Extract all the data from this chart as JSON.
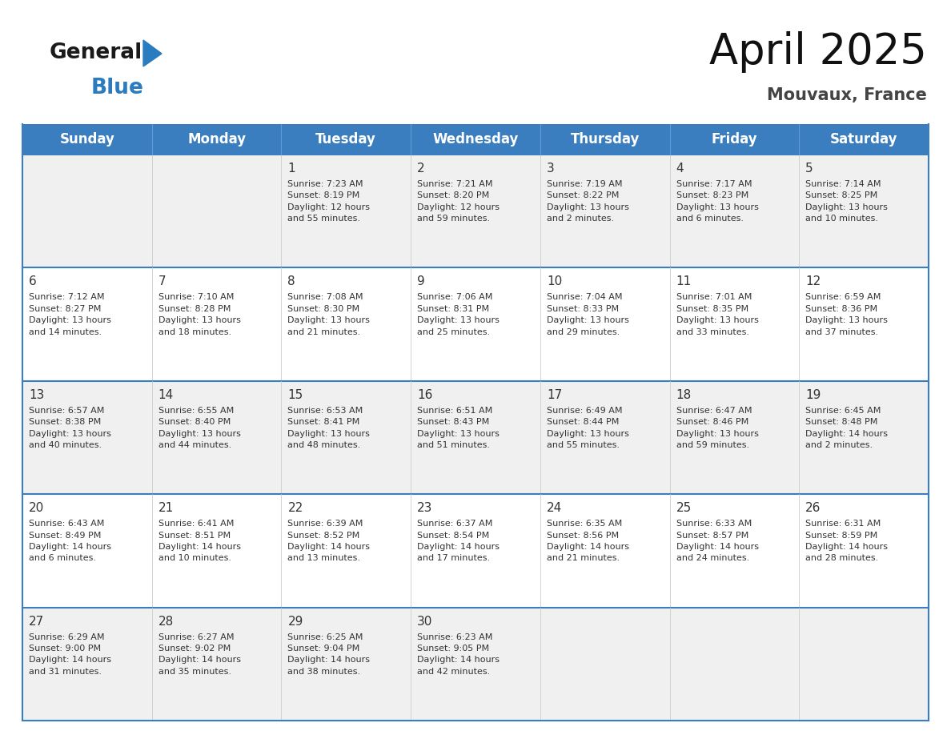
{
  "title": "April 2025",
  "subtitle": "Mouvaux, France",
  "header_bg": "#3a7ebf",
  "header_text": "#ffffff",
  "cell_bg_light": "#f0f0f0",
  "cell_bg_white": "#ffffff",
  "border_color": "#3a7ebf",
  "text_color": "#333333",
  "days_of_week": [
    "Sunday",
    "Monday",
    "Tuesday",
    "Wednesday",
    "Thursday",
    "Friday",
    "Saturday"
  ],
  "weeks": [
    [
      {
        "day": "",
        "info": ""
      },
      {
        "day": "",
        "info": ""
      },
      {
        "day": "1",
        "info": "Sunrise: 7:23 AM\nSunset: 8:19 PM\nDaylight: 12 hours\nand 55 minutes."
      },
      {
        "day": "2",
        "info": "Sunrise: 7:21 AM\nSunset: 8:20 PM\nDaylight: 12 hours\nand 59 minutes."
      },
      {
        "day": "3",
        "info": "Sunrise: 7:19 AM\nSunset: 8:22 PM\nDaylight: 13 hours\nand 2 minutes."
      },
      {
        "day": "4",
        "info": "Sunrise: 7:17 AM\nSunset: 8:23 PM\nDaylight: 13 hours\nand 6 minutes."
      },
      {
        "day": "5",
        "info": "Sunrise: 7:14 AM\nSunset: 8:25 PM\nDaylight: 13 hours\nand 10 minutes."
      }
    ],
    [
      {
        "day": "6",
        "info": "Sunrise: 7:12 AM\nSunset: 8:27 PM\nDaylight: 13 hours\nand 14 minutes."
      },
      {
        "day": "7",
        "info": "Sunrise: 7:10 AM\nSunset: 8:28 PM\nDaylight: 13 hours\nand 18 minutes."
      },
      {
        "day": "8",
        "info": "Sunrise: 7:08 AM\nSunset: 8:30 PM\nDaylight: 13 hours\nand 21 minutes."
      },
      {
        "day": "9",
        "info": "Sunrise: 7:06 AM\nSunset: 8:31 PM\nDaylight: 13 hours\nand 25 minutes."
      },
      {
        "day": "10",
        "info": "Sunrise: 7:04 AM\nSunset: 8:33 PM\nDaylight: 13 hours\nand 29 minutes."
      },
      {
        "day": "11",
        "info": "Sunrise: 7:01 AM\nSunset: 8:35 PM\nDaylight: 13 hours\nand 33 minutes."
      },
      {
        "day": "12",
        "info": "Sunrise: 6:59 AM\nSunset: 8:36 PM\nDaylight: 13 hours\nand 37 minutes."
      }
    ],
    [
      {
        "day": "13",
        "info": "Sunrise: 6:57 AM\nSunset: 8:38 PM\nDaylight: 13 hours\nand 40 minutes."
      },
      {
        "day": "14",
        "info": "Sunrise: 6:55 AM\nSunset: 8:40 PM\nDaylight: 13 hours\nand 44 minutes."
      },
      {
        "day": "15",
        "info": "Sunrise: 6:53 AM\nSunset: 8:41 PM\nDaylight: 13 hours\nand 48 minutes."
      },
      {
        "day": "16",
        "info": "Sunrise: 6:51 AM\nSunset: 8:43 PM\nDaylight: 13 hours\nand 51 minutes."
      },
      {
        "day": "17",
        "info": "Sunrise: 6:49 AM\nSunset: 8:44 PM\nDaylight: 13 hours\nand 55 minutes."
      },
      {
        "day": "18",
        "info": "Sunrise: 6:47 AM\nSunset: 8:46 PM\nDaylight: 13 hours\nand 59 minutes."
      },
      {
        "day": "19",
        "info": "Sunrise: 6:45 AM\nSunset: 8:48 PM\nDaylight: 14 hours\nand 2 minutes."
      }
    ],
    [
      {
        "day": "20",
        "info": "Sunrise: 6:43 AM\nSunset: 8:49 PM\nDaylight: 14 hours\nand 6 minutes."
      },
      {
        "day": "21",
        "info": "Sunrise: 6:41 AM\nSunset: 8:51 PM\nDaylight: 14 hours\nand 10 minutes."
      },
      {
        "day": "22",
        "info": "Sunrise: 6:39 AM\nSunset: 8:52 PM\nDaylight: 14 hours\nand 13 minutes."
      },
      {
        "day": "23",
        "info": "Sunrise: 6:37 AM\nSunset: 8:54 PM\nDaylight: 14 hours\nand 17 minutes."
      },
      {
        "day": "24",
        "info": "Sunrise: 6:35 AM\nSunset: 8:56 PM\nDaylight: 14 hours\nand 21 minutes."
      },
      {
        "day": "25",
        "info": "Sunrise: 6:33 AM\nSunset: 8:57 PM\nDaylight: 14 hours\nand 24 minutes."
      },
      {
        "day": "26",
        "info": "Sunrise: 6:31 AM\nSunset: 8:59 PM\nDaylight: 14 hours\nand 28 minutes."
      }
    ],
    [
      {
        "day": "27",
        "info": "Sunrise: 6:29 AM\nSunset: 9:00 PM\nDaylight: 14 hours\nand 31 minutes."
      },
      {
        "day": "28",
        "info": "Sunrise: 6:27 AM\nSunset: 9:02 PM\nDaylight: 14 hours\nand 35 minutes."
      },
      {
        "day": "29",
        "info": "Sunrise: 6:25 AM\nSunset: 9:04 PM\nDaylight: 14 hours\nand 38 minutes."
      },
      {
        "day": "30",
        "info": "Sunrise: 6:23 AM\nSunset: 9:05 PM\nDaylight: 14 hours\nand 42 minutes."
      },
      {
        "day": "",
        "info": ""
      },
      {
        "day": "",
        "info": ""
      },
      {
        "day": "",
        "info": ""
      }
    ]
  ],
  "logo_general_color": "#1a1a1a",
  "logo_blue_color": "#2b7bbf",
  "logo_triangle_color": "#2b7bbf",
  "title_fontsize": 38,
  "subtitle_fontsize": 15,
  "header_fontsize": 12,
  "day_num_fontsize": 11,
  "info_fontsize": 8
}
